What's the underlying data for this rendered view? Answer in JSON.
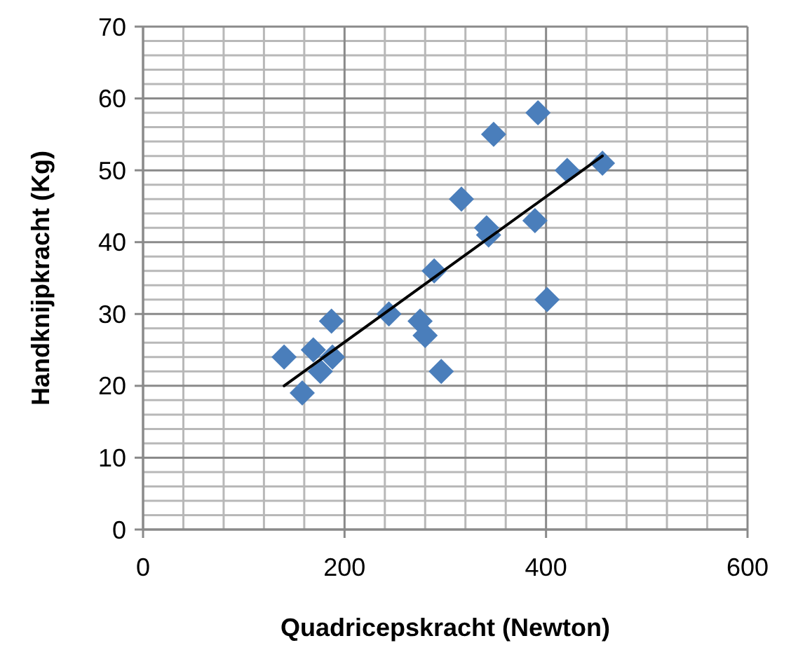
{
  "chart_data": {
    "type": "scatter",
    "xlabel": "Quadricepskracht (Newton)",
    "ylabel": "Handknijpkracht (Kg)",
    "xlim": [
      0,
      600
    ],
    "xticks": [
      0,
      200,
      400,
      600
    ],
    "ylim": [
      0,
      70
    ],
    "yticks": [
      0,
      10,
      20,
      30,
      40,
      50,
      60,
      70
    ],
    "grid": true,
    "series": [
      {
        "marker": "diamond",
        "color": "#4a7ebb",
        "x": [
          140,
          158,
          169,
          176,
          188,
          187,
          244,
          275,
          280,
          296,
          289,
          316,
          341,
          343,
          348,
          392,
          389,
          401,
          421,
          456
        ],
        "values": [
          24,
          19,
          25,
          22,
          24,
          29,
          30,
          29,
          27,
          22,
          36,
          46,
          42,
          41,
          55,
          58,
          43,
          32,
          50,
          51
        ]
      },
      {
        "type": "line",
        "marker": "none",
        "color": "#000000",
        "x": [
          140,
          456
        ],
        "values": [
          20,
          52
        ]
      }
    ]
  }
}
